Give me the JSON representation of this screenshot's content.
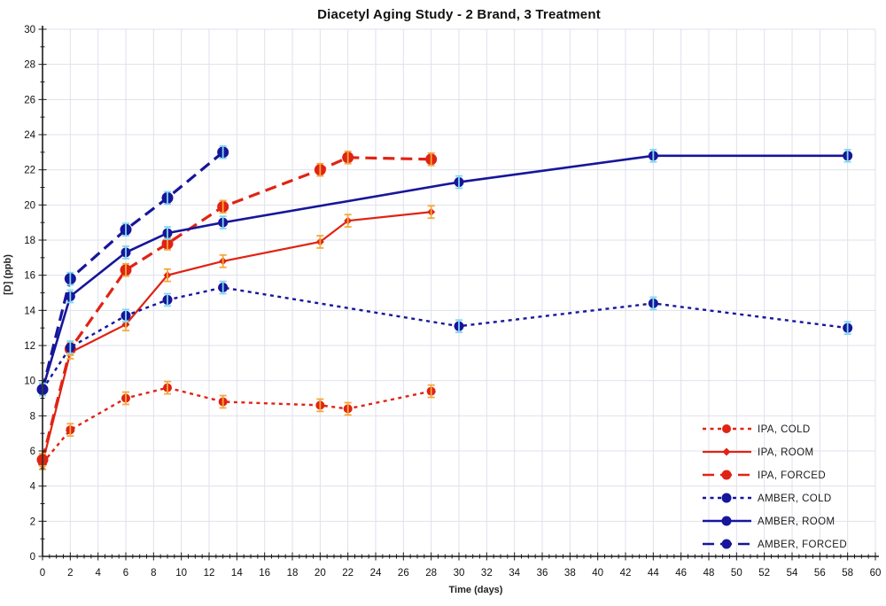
{
  "chart_data": {
    "type": "line",
    "title": "Diacetyl Aging Study - 2 Brand, 3 Treatment",
    "xlabel": "Time (days)",
    "ylabel": "[D] (ppb)",
    "xlim": [
      0,
      60
    ],
    "ylim": [
      0,
      30
    ],
    "x_tick_step": 2,
    "y_tick_step": 2,
    "x_minor_step": 0.5,
    "y_minor_step": 1,
    "grid": true,
    "grid_color": "#dfe1ec",
    "axis_color": "#1a1a1a",
    "legend_position": "lower right",
    "error_bar_half": 0.35,
    "series": [
      {
        "name": "IPA, COLD",
        "color": "#e02313",
        "errbar_color": "#f4a93a",
        "line_style": "dashed",
        "marker": "circle",
        "marker_size": 5,
        "line_width": 2.4,
        "x": [
          0,
          2,
          6,
          9,
          13,
          20,
          22,
          28
        ],
        "y": [
          5.3,
          7.2,
          9.0,
          9.6,
          8.8,
          8.6,
          8.4,
          9.4
        ]
      },
      {
        "name": "IPA, ROOM",
        "color": "#e02313",
        "errbar_color": "#f4a93a",
        "line_style": "solid",
        "marker": "diamond",
        "marker_size": 4.5,
        "line_width": 2.2,
        "x": [
          0,
          2,
          6,
          9,
          13,
          20,
          22,
          28
        ],
        "y": [
          5.3,
          11.6,
          13.2,
          16.0,
          16.8,
          17.9,
          19.1,
          19.6
        ]
      },
      {
        "name": "IPA, FORCED",
        "color": "#e02313",
        "errbar_color": "#f4a93a",
        "line_style": "longdash",
        "marker": "circle",
        "marker_size": 6.5,
        "line_width": 3.2,
        "x": [
          0,
          2,
          6,
          9,
          13,
          20,
          22,
          28
        ],
        "y": [
          5.5,
          11.8,
          16.3,
          17.8,
          19.9,
          22.0,
          22.7,
          22.6
        ]
      },
      {
        "name": "AMBER, COLD",
        "color": "#16169b",
        "errbar_color": "#7fd8f0",
        "line_style": "dashed",
        "marker": "circle",
        "marker_size": 5.5,
        "line_width": 2.4,
        "x": [
          0,
          2,
          6,
          9,
          13,
          30,
          44,
          58
        ],
        "y": [
          9.5,
          11.9,
          13.7,
          14.6,
          15.3,
          13.1,
          14.4,
          13.0
        ]
      },
      {
        "name": "AMBER, ROOM",
        "color": "#16169b",
        "errbar_color": "#7fd8f0",
        "line_style": "solid",
        "marker": "circle",
        "marker_size": 5.5,
        "line_width": 2.6,
        "x": [
          0,
          2,
          6,
          9,
          13,
          30,
          44,
          58
        ],
        "y": [
          9.5,
          14.8,
          17.3,
          18.4,
          19.0,
          21.3,
          22.8,
          22.8
        ]
      },
      {
        "name": "AMBER, FORCED",
        "color": "#16169b",
        "errbar_color": "#7fd8f0",
        "line_style": "longdash",
        "marker": "circle",
        "marker_size": 6.5,
        "line_width": 3.2,
        "x": [
          0,
          2,
          6,
          9,
          13
        ],
        "y": [
          9.5,
          15.8,
          18.6,
          20.4,
          23.0
        ]
      }
    ]
  }
}
